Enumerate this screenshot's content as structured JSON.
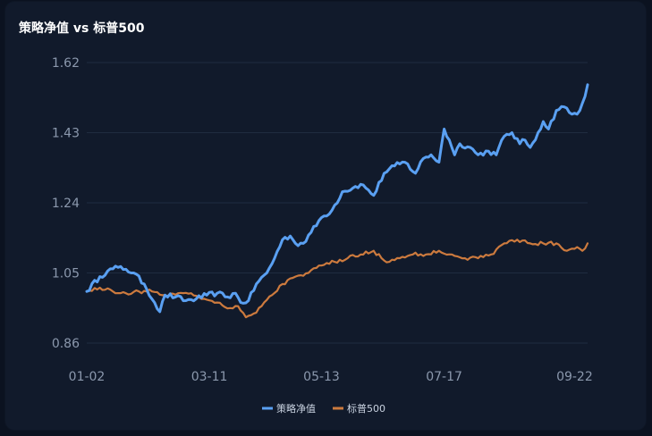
{
  "chart_data": {
    "type": "line",
    "title": "策略净值 vs 标普500",
    "ylim": [
      0.86,
      1.62
    ],
    "yticks": [
      "1.62",
      "1.43",
      "1.24",
      "1.05",
      "0.86"
    ],
    "ytick_values": [
      1.62,
      1.43,
      1.24,
      1.05,
      0.86
    ],
    "xlabels": [
      "01-02",
      "03-11",
      "05-13",
      "07-17",
      "09-22"
    ],
    "xlabel_indices": [
      0,
      47,
      90,
      137,
      187
    ],
    "grid": true,
    "legend_position": "bottom-center",
    "colors": {
      "strategy": "#5aa0f2",
      "benchmark": "#cc7a3e"
    },
    "series": [
      {
        "name": "策略净值",
        "color": "#5aa0f2",
        "keypoints": [
          [
            0,
            1.0
          ],
          [
            5,
            1.04
          ],
          [
            8,
            1.055
          ],
          [
            12,
            1.065
          ],
          [
            15,
            1.06
          ],
          [
            18,
            1.05
          ],
          [
            22,
            1.02
          ],
          [
            26,
            0.97
          ],
          [
            28,
            0.945
          ],
          [
            30,
            0.99
          ],
          [
            34,
            0.985
          ],
          [
            38,
            0.975
          ],
          [
            42,
            0.98
          ],
          [
            46,
            0.99
          ],
          [
            50,
            0.995
          ],
          [
            54,
            0.985
          ],
          [
            57,
            0.995
          ],
          [
            59,
            0.97
          ],
          [
            62,
            0.975
          ],
          [
            65,
            1.02
          ],
          [
            69,
            1.05
          ],
          [
            72,
            1.09
          ],
          [
            75,
            1.14
          ],
          [
            78,
            1.15
          ],
          [
            80,
            1.13
          ],
          [
            83,
            1.13
          ],
          [
            86,
            1.16
          ],
          [
            90,
            1.2
          ],
          [
            94,
            1.22
          ],
          [
            98,
            1.27
          ],
          [
            102,
            1.28
          ],
          [
            105,
            1.29
          ],
          [
            107,
            1.28
          ],
          [
            110,
            1.26
          ],
          [
            114,
            1.32
          ],
          [
            118,
            1.34
          ],
          [
            122,
            1.35
          ],
          [
            126,
            1.32
          ],
          [
            129,
            1.36
          ],
          [
            132,
            1.37
          ],
          [
            135,
            1.35
          ],
          [
            137,
            1.44
          ],
          [
            139,
            1.41
          ],
          [
            141,
            1.37
          ],
          [
            143,
            1.4
          ],
          [
            147,
            1.39
          ],
          [
            150,
            1.37
          ],
          [
            154,
            1.38
          ],
          [
            157,
            1.37
          ],
          [
            160,
            1.42
          ],
          [
            163,
            1.43
          ],
          [
            166,
            1.4
          ],
          [
            168,
            1.41
          ],
          [
            170,
            1.39
          ],
          [
            173,
            1.43
          ],
          [
            175,
            1.46
          ],
          [
            177,
            1.44
          ],
          [
            180,
            1.49
          ],
          [
            183,
            1.5
          ],
          [
            186,
            1.48
          ],
          [
            188,
            1.48
          ],
          [
            190,
            1.51
          ],
          [
            192,
            1.56
          ]
        ]
      },
      {
        "name": "标普500",
        "color": "#cc7a3e",
        "keypoints": [
          [
            0,
            1.0
          ],
          [
            5,
            1.01
          ],
          [
            10,
            1.0
          ],
          [
            15,
            0.995
          ],
          [
            20,
            1.0
          ],
          [
            25,
            1.0
          ],
          [
            30,
            0.99
          ],
          [
            35,
            0.995
          ],
          [
            40,
            0.995
          ],
          [
            45,
            0.98
          ],
          [
            50,
            0.97
          ],
          [
            55,
            0.955
          ],
          [
            58,
            0.96
          ],
          [
            61,
            0.93
          ],
          [
            64,
            0.94
          ],
          [
            67,
            0.96
          ],
          [
            71,
            0.99
          ],
          [
            75,
            1.02
          ],
          [
            80,
            1.04
          ],
          [
            85,
            1.05
          ],
          [
            90,
            1.07
          ],
          [
            95,
            1.08
          ],
          [
            100,
            1.09
          ],
          [
            105,
            1.1
          ],
          [
            110,
            1.11
          ],
          [
            113,
            1.09
          ],
          [
            116,
            1.08
          ],
          [
            120,
            1.09
          ],
          [
            125,
            1.1
          ],
          [
            130,
            1.1
          ],
          [
            135,
            1.11
          ],
          [
            140,
            1.1
          ],
          [
            145,
            1.09
          ],
          [
            150,
            1.09
          ],
          [
            155,
            1.1
          ],
          [
            160,
            1.13
          ],
          [
            165,
            1.14
          ],
          [
            170,
            1.13
          ],
          [
            175,
            1.13
          ],
          [
            180,
            1.13
          ],
          [
            184,
            1.11
          ],
          [
            188,
            1.12
          ],
          [
            190,
            1.11
          ],
          [
            192,
            1.13
          ]
        ]
      }
    ]
  }
}
